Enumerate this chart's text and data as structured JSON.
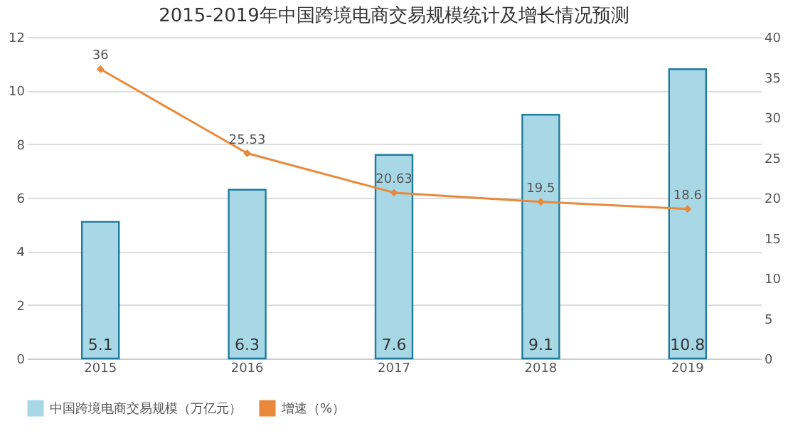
{
  "chart_data": {
    "type": "bar",
    "title": "2015-2019年中国跨境电商交易规模统计及增长情况预测",
    "categories": [
      "2015",
      "2016",
      "2017",
      "2018",
      "2019"
    ],
    "series": [
      {
        "name": "中国跨境电商交易规模（万亿元）",
        "color": "#a8d8e6",
        "values": [
          5.1,
          6.3,
          7.6,
          9.1,
          10.8
        ]
      },
      {
        "name": "增速（%）",
        "type": "line",
        "axis": "y2",
        "color": "#e8893b",
        "values": [
          36,
          25.53,
          20.63,
          19.5,
          18.6
        ]
      }
    ],
    "ylim": [
      0,
      12
    ],
    "yticks": [
      0,
      2,
      4,
      6,
      8,
      10,
      12
    ],
    "y2lim": [
      0,
      40
    ],
    "y2ticks": [
      0,
      5,
      10,
      15,
      20,
      25,
      30,
      35,
      40
    ],
    "grid": "y",
    "legend": "bottom",
    "marker": "diamond",
    "data_labels": true
  }
}
